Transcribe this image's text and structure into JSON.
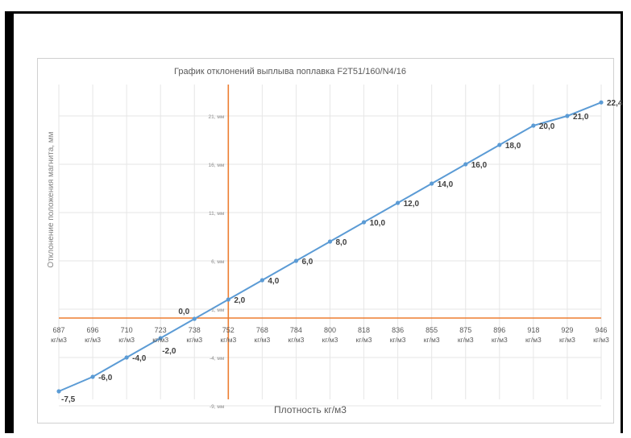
{
  "chart_data": {
    "type": "line",
    "title": "График отклонений выплыва поплавка F2T51/160/N4/16",
    "xlabel": "Плотность кг/м3",
    "ylabel": "Отклонение положения магнита, мм",
    "x_unit": "кг/м3",
    "categories": [
      "687",
      "696",
      "710",
      "723",
      "738",
      "752",
      "768",
      "784",
      "800",
      "818",
      "836",
      "855",
      "875",
      "896",
      "918",
      "929",
      "946"
    ],
    "series": [
      {
        "values": [
          -7.5,
          -6.0,
          -4.0,
          -2.0,
          0.0,
          2.0,
          4.0,
          6.0,
          8.0,
          10.0,
          12.0,
          14.0,
          16.0,
          18.0,
          20.0,
          21.0,
          22.4
        ],
        "value_labels": [
          "-7,5",
          "-6,0",
          "-4,0",
          "-2,0",
          "0,0",
          "2,0",
          "4,0",
          "6,0",
          "8,0",
          "10,0",
          "12,0",
          "14,0",
          "16,0",
          "18,0",
          "20,0",
          "21,0",
          "22,4"
        ],
        "color": "#5b9bd5"
      }
    ],
    "y_ticks": [
      {
        "value": 21,
        "label": "21, мм"
      },
      {
        "value": 16,
        "label": "16, мм"
      },
      {
        "value": 11,
        "label": "11, мм"
      },
      {
        "value": 6,
        "label": "6, мм"
      },
      {
        "value": 1,
        "label": "1, мм"
      },
      {
        "value": -4,
        "label": "-4, мм"
      },
      {
        "value": -9,
        "label": "-9, мм"
      }
    ],
    "ylim": [
      -9,
      22.4
    ],
    "grid": true,
    "axis_color": "#ed7d31",
    "grid_color": "#e6e6e6",
    "legend": "none"
  }
}
